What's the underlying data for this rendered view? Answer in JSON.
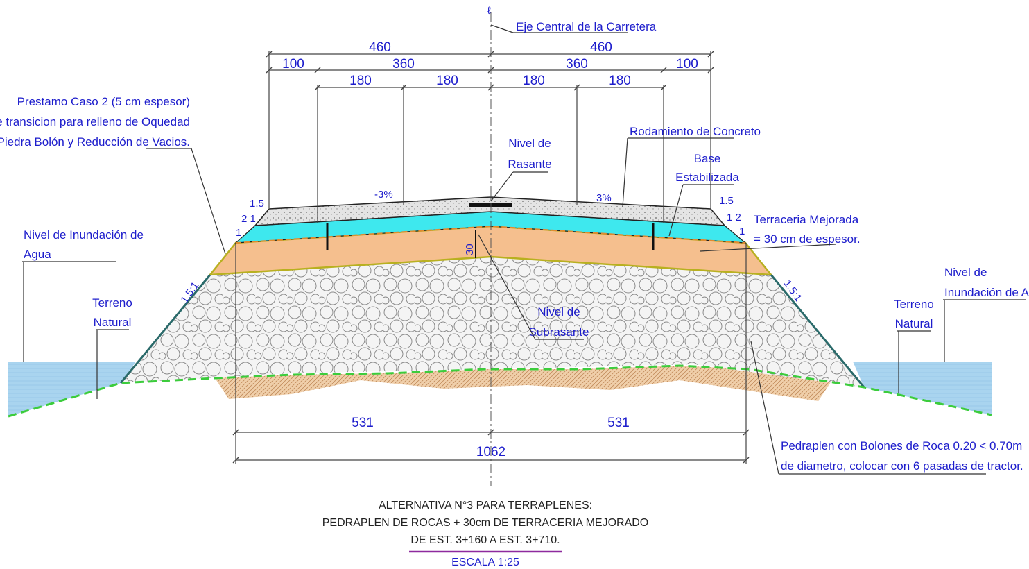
{
  "labels": {
    "axis_symbol": "ℓ",
    "eje_central": "Eje Central de la Carretera",
    "prestamo": [
      "Prestamo Caso 2 (5 cm espesor)",
      "Capa de transicion para relleno de Oquedad",
      "de Piedra Bolón y Reducción de Vacios."
    ],
    "nivel_rasante": [
      "Nivel de",
      "Rasante"
    ],
    "rodamiento": "Rodamiento de Concreto",
    "base_estabilizada": [
      "Base",
      "Estabilizada"
    ],
    "terraceria": [
      "Terraceria Mejorada",
      "= 30 cm de espesor."
    ],
    "nivel_inundacion_left": [
      "Nivel de Inundación de",
      "Agua"
    ],
    "nivel_inundacion_right": [
      "Nivel de",
      "Inundación de Agua"
    ],
    "terreno_left": [
      "Terreno",
      "Natural"
    ],
    "terreno_right": [
      "Terreno",
      "Natural"
    ],
    "nivel_subrasante": [
      "Nivel de",
      "Subrasante"
    ],
    "pedraplen": [
      "Pedraplen con Bolones de Roca 0.20 < 0.70m",
      "de diametro, colocar con 6 pasadas de tractor."
    ],
    "slope_left": "-3%",
    "slope_right": "3%",
    "thickness_30": "30",
    "talud_left": "1.5:1",
    "talud_right": "1.5:1",
    "left_15": "1.5",
    "left_21": "2 1",
    "left_1": "1",
    "right_15": "1.5",
    "right_12": "1 2",
    "right_1": "1"
  },
  "dimensions": {
    "top_total_left": "460",
    "top_total_right": "460",
    "shoulder_left": "100",
    "shoulder_right": "100",
    "lane_left": "360",
    "lane_right": "360",
    "half_lane_1": "180",
    "half_lane_2": "180",
    "half_lane_3": "180",
    "half_lane_4": "180",
    "bottom_left": "531",
    "bottom_right": "531",
    "bottom_total": "1062"
  },
  "title": {
    "line1": "ALTERNATIVA N°3 PARA TERRAPLENES:",
    "line2": "PEDRAPLEN DE ROCAS + 30cm DE TERRACERIA MEJORADO",
    "line3": "DE EST. 3+160 A EST. 3+710.",
    "scale": "ESCALA 1:25"
  },
  "colors": {
    "water": "#a9d4ef",
    "base": "#3ee8ee",
    "terraceria": "#f5bf8e",
    "rock_fill": "#f4f4f4",
    "concrete": "#e4e4e4",
    "green_dash": "#3ccc3c",
    "olive_line": "#b8b020",
    "label_blue": "#1d1dcc",
    "title_underline": "#8e2a9e"
  }
}
